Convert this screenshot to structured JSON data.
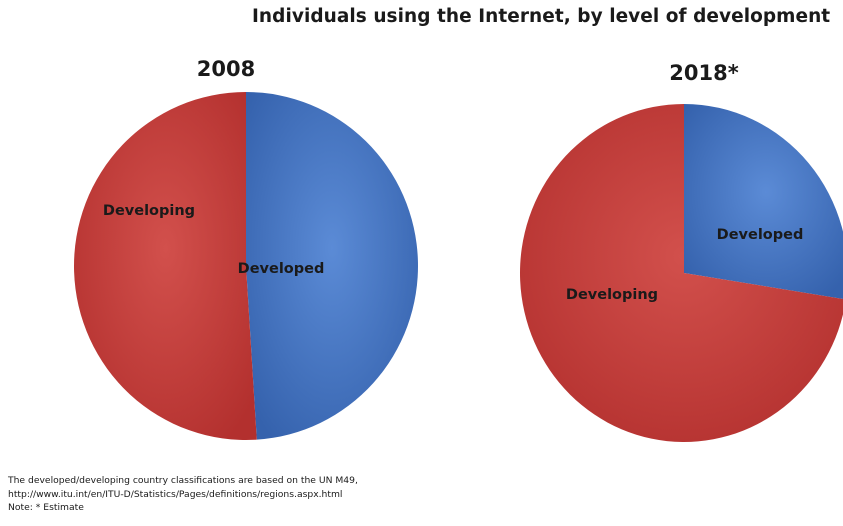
{
  "chart_data": {
    "type": "pie",
    "title": "Individuals using the Internet, by level of development",
    "charts": [
      {
        "title": "2008",
        "slices": [
          {
            "label": "Developed",
            "value": 49,
            "color": "#4472c4"
          },
          {
            "label": "Developing",
            "value": 51,
            "color": "#c0504d"
          }
        ]
      },
      {
        "title": "2018*",
        "slices": [
          {
            "label": "Developed",
            "value": 27.5,
            "color": "#4472c4"
          },
          {
            "label": "Developing",
            "value": 72.5,
            "color": "#c0504d"
          }
        ]
      }
    ]
  },
  "footnote": {
    "line1": "The developed/developing country classifications are based on the UN M49,",
    "line2": "http://www.itu.int/en/ITU-D/Statistics/Pages/definitions/regions.aspx.html",
    "line3": "Note: * Estimate"
  }
}
